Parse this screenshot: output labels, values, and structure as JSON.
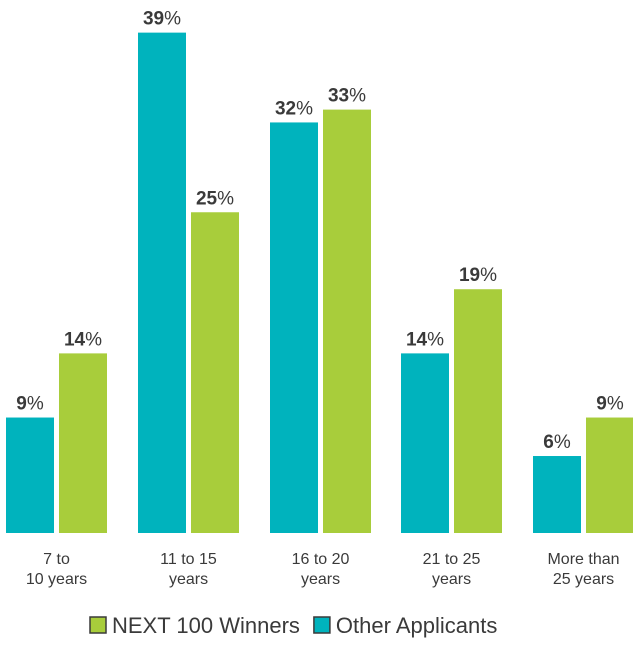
{
  "chart_data": {
    "type": "bar",
    "categories": [
      [
        "7 to",
        "10 years"
      ],
      [
        "11 to 15",
        "years"
      ],
      [
        "16 to 20",
        "years"
      ],
      [
        "21 to 25",
        "years"
      ],
      [
        "More than",
        "25 years"
      ]
    ],
    "series": [
      {
        "name": "Other Applicants",
        "values": [
          9,
          39,
          32,
          14,
          6
        ],
        "color": "#00b3bd"
      },
      {
        "name": "NEXT 100 Winners",
        "values": [
          14,
          25,
          33,
          19,
          9
        ],
        "color": "#a8cd3b"
      }
    ],
    "value_suffix": "%",
    "ylim": [
      0,
      40
    ],
    "grid": false,
    "legend": {
      "placement": "bottom-center",
      "order": [
        "NEXT 100 Winners",
        "Other Applicants"
      ]
    }
  }
}
